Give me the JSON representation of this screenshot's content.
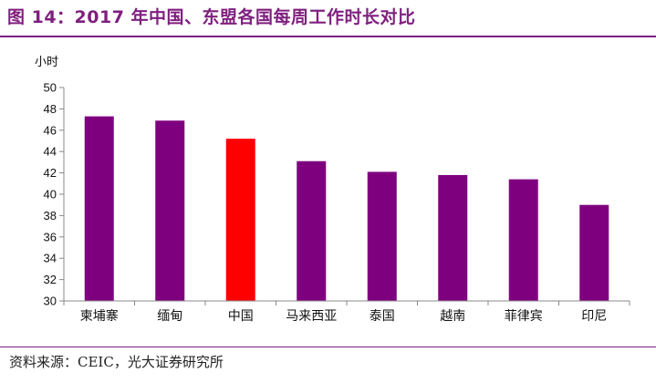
{
  "header": {
    "title": "图 14：2017 年中国、东盟各国每周工作时长对比"
  },
  "footer": {
    "source": "资料来源：CEIC，光大证券研究所"
  },
  "colors": {
    "default_bar": "#7f007f",
    "highlight_bar": "#ff0000",
    "accent": "#7f1f7f"
  },
  "chart_data": {
    "type": "bar",
    "title": "",
    "xlabel": "",
    "ylabel": "小时",
    "categories": [
      "柬埔寨",
      "缅甸",
      "中国",
      "马来西亚",
      "泰国",
      "越南",
      "菲律宾",
      "印尼"
    ],
    "values": [
      47.3,
      46.9,
      45.2,
      43.1,
      42.1,
      41.8,
      41.4,
      39.0
    ],
    "highlight": [
      "中国"
    ],
    "ylim": [
      30,
      50
    ],
    "yticks": [
      30,
      32,
      34,
      36,
      38,
      40,
      42,
      44,
      46,
      48,
      50
    ],
    "grid": false,
    "legend": "none"
  }
}
